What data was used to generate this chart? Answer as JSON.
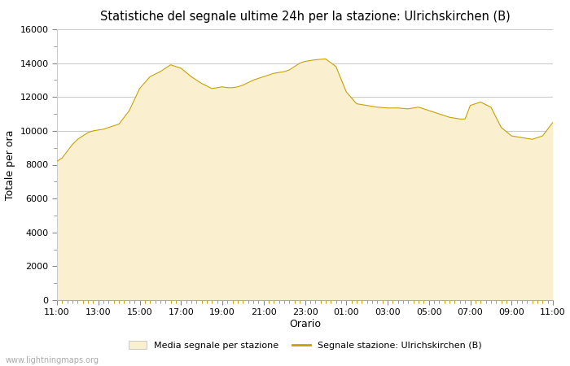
{
  "title": "Statistiche del segnale ultime 24h per la stazione: Ulrichskirchen (B)",
  "xlabel": "Orario",
  "ylabel": "Totale per ora",
  "xlim": [
    0,
    24
  ],
  "ylim": [
    0,
    16000
  ],
  "yticks": [
    0,
    2000,
    4000,
    6000,
    8000,
    10000,
    12000,
    14000,
    16000
  ],
  "xtick_labels": [
    "11:00",
    "13:00",
    "15:00",
    "17:00",
    "19:00",
    "21:00",
    "23:00",
    "01:00",
    "03:00",
    "05:00",
    "07:00",
    "09:00",
    "11:00"
  ],
  "fill_color": "#FAF0D0",
  "fill_edge_color": "#D4A820",
  "line_color": "#C8A000",
  "background_color": "#ffffff",
  "grid_color": "#cccccc",
  "watermark": "www.lightningmaps.org",
  "legend_fill_label": "Media segnale per stazione",
  "legend_line_label": "Segnale stazione: Ulrichskirchen (B)",
  "x": [
    0,
    0.25,
    0.5,
    0.75,
    1.0,
    1.25,
    1.5,
    1.75,
    2.0,
    2.25,
    2.5,
    2.75,
    3.0,
    3.5,
    4.0,
    4.5,
    5.0,
    5.5,
    6.0,
    6.5,
    7.0,
    7.5,
    8.0,
    8.25,
    8.5,
    8.75,
    9.0,
    9.5,
    10.0,
    10.5,
    11.0,
    11.25,
    11.5,
    11.75,
    12.0,
    12.25,
    12.5,
    13.0,
    13.5,
    14.0,
    14.5,
    15.0,
    15.5,
    16.0,
    16.5,
    17.0,
    17.5,
    18.0,
    18.25,
    18.5,
    18.75,
    19.0,
    19.25,
    19.5,
    19.75,
    20.0,
    20.25,
    20.5,
    21.0,
    21.5,
    22.0,
    22.5,
    23.0,
    23.5,
    24.0
  ],
  "y_fill": [
    8200,
    8400,
    8800,
    9200,
    9500,
    9700,
    9900,
    10000,
    10050,
    10100,
    10200,
    10300,
    10400,
    11200,
    12500,
    13200,
    13500,
    13900,
    13700,
    13200,
    12800,
    12500,
    12600,
    12550,
    12550,
    12600,
    12700,
    13000,
    13200,
    13400,
    13500,
    13600,
    13800,
    14000,
    14100,
    14150,
    14200,
    14250,
    13800,
    12300,
    11600,
    11500,
    11400,
    11350,
    11350,
    11300,
    11400,
    11200,
    11100,
    11000,
    10900,
    10800,
    10750,
    10700,
    10700,
    11500,
    11600,
    11700,
    11400,
    10200,
    9700,
    9600,
    9500,
    9700,
    10500
  ],
  "y_line": [
    8200,
    8400,
    8800,
    9200,
    9500,
    9700,
    9900,
    10000,
    10050,
    10100,
    10200,
    10300,
    10400,
    11200,
    12500,
    13200,
    13500,
    13900,
    13700,
    13200,
    12800,
    12500,
    12600,
    12550,
    12550,
    12600,
    12700,
    13000,
    13200,
    13400,
    13500,
    13600,
    13800,
    14000,
    14100,
    14150,
    14200,
    14250,
    13800,
    12300,
    11600,
    11500,
    11400,
    11350,
    11350,
    11300,
    11400,
    11200,
    11100,
    11000,
    10900,
    10800,
    10750,
    10700,
    10700,
    11500,
    11600,
    11700,
    11400,
    10200,
    9700,
    9600,
    9500,
    9700,
    10500
  ]
}
